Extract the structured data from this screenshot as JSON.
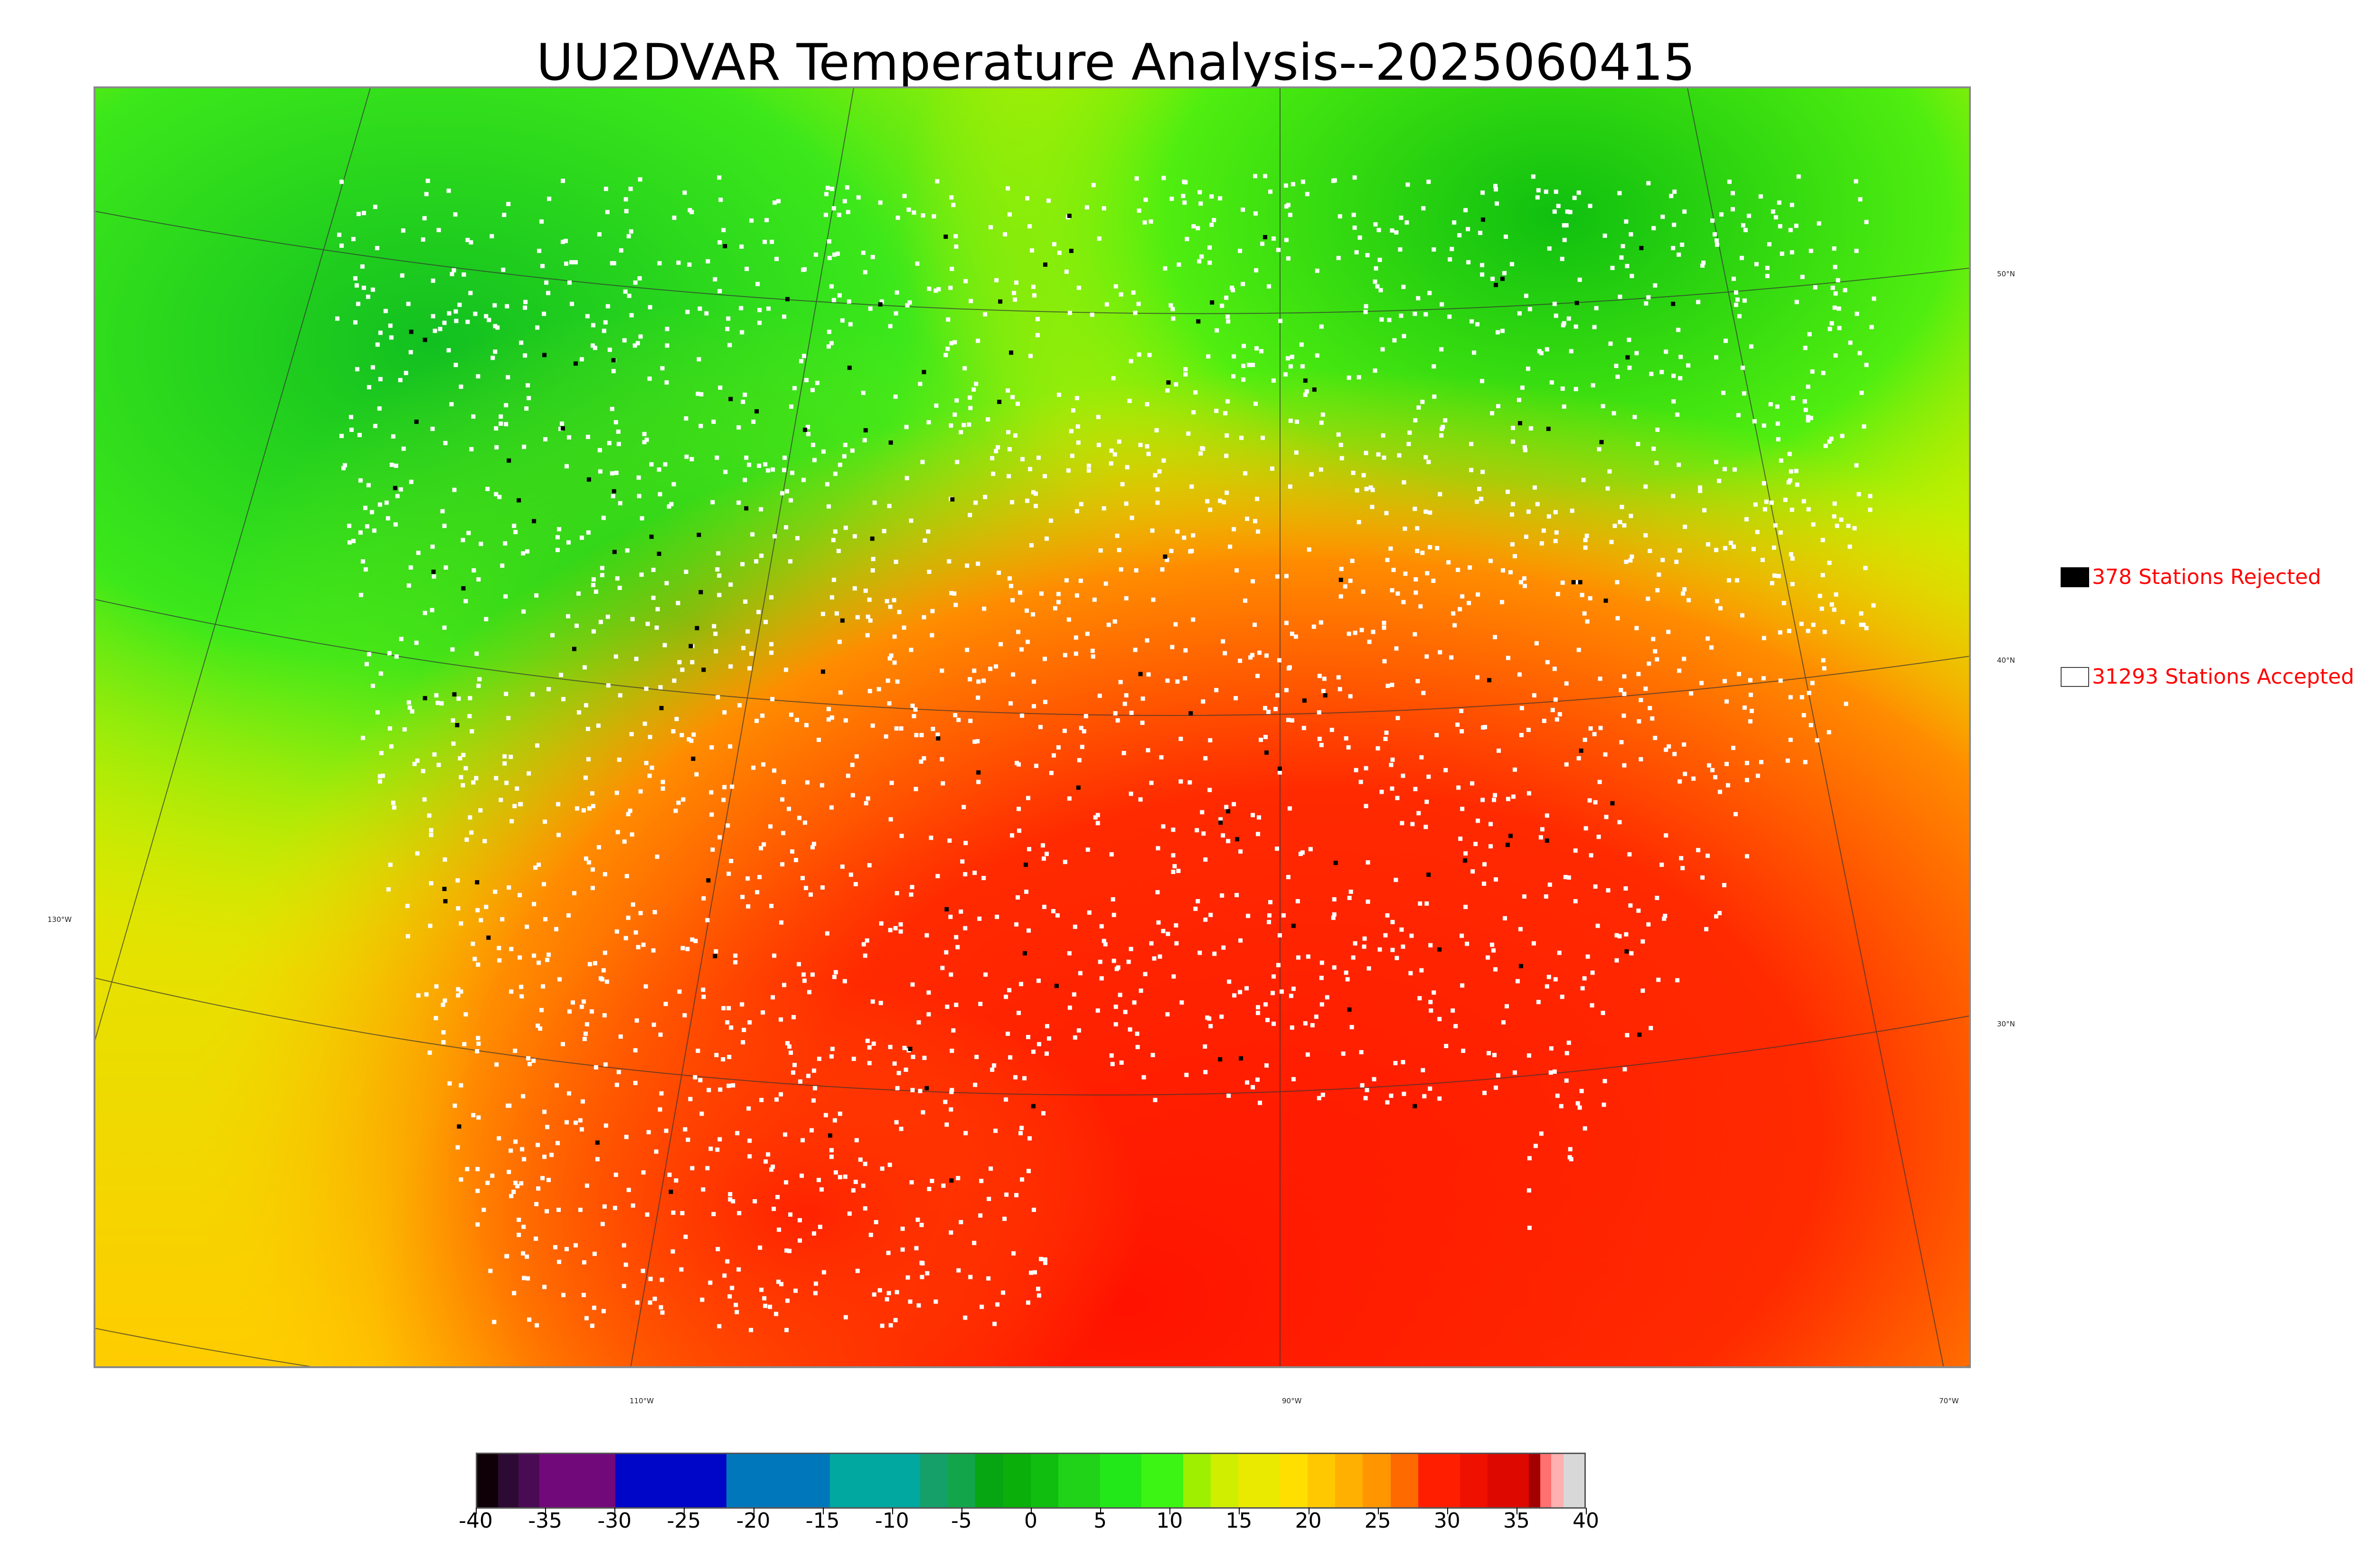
{
  "title": "UU2DVAR Temperature Analysis--2025060415",
  "map": {
    "latitude_labels": [
      "50°N",
      "40°N",
      "30°N"
    ],
    "longitude_labels": [
      "130°W",
      "110°W",
      "90°W",
      "70°W"
    ],
    "temperature_field": "temperature",
    "rejected_station_color": "#000000",
    "accepted_station_color": "#ffffff"
  },
  "legend": {
    "rejected": {
      "count": 378,
      "text": "378 Stations Rejected",
      "color": "#000000"
    },
    "accepted": {
      "count": 31293,
      "text": "31293 Stations Accepted",
      "color": "#ffffff"
    }
  },
  "colorbar": {
    "min": -40,
    "max": 40,
    "tick_labels": [
      "-40",
      "-35",
      "-30",
      "-25",
      "-20",
      "-15",
      "-10",
      "-5",
      "0",
      "5",
      "10",
      "15",
      "20",
      "25",
      "30",
      "35",
      "40"
    ],
    "colors": [
      {
        "from": -40,
        "to": -38.5,
        "color": "#0f0008"
      },
      {
        "from": -38.5,
        "to": -37,
        "color": "#2d0a33"
      },
      {
        "from": -37,
        "to": -35.5,
        "color": "#4a0b55"
      },
      {
        "from": -35.5,
        "to": -30,
        "color": "#72097a"
      },
      {
        "from": -30,
        "to": -22,
        "color": "#0006c8"
      },
      {
        "from": -22,
        "to": -14.5,
        "color": "#0077bb"
      },
      {
        "from": -14.5,
        "to": -8,
        "color": "#00a8a0"
      },
      {
        "from": -8,
        "to": -6,
        "color": "#15a06a"
      },
      {
        "from": -6,
        "to": -4,
        "color": "#13a54a"
      },
      {
        "from": -4,
        "to": -2,
        "color": "#05a612"
      },
      {
        "from": -2,
        "to": 0,
        "color": "#0aaf0a"
      },
      {
        "from": 0,
        "to": 2,
        "color": "#10be10"
      },
      {
        "from": 2,
        "to": 5,
        "color": "#20d218"
      },
      {
        "from": 5,
        "to": 8,
        "color": "#22e81a"
      },
      {
        "from": 8,
        "to": 11,
        "color": "#3cf514"
      },
      {
        "from": 11,
        "to": 13,
        "color": "#9ff000"
      },
      {
        "from": 13,
        "to": 15,
        "color": "#d0ee00"
      },
      {
        "from": 15,
        "to": 18,
        "color": "#eaea00"
      },
      {
        "from": 18,
        "to": 20,
        "color": "#ffdf00"
      },
      {
        "from": 20,
        "to": 22,
        "color": "#ffc800"
      },
      {
        "from": 22,
        "to": 24,
        "color": "#ffb000"
      },
      {
        "from": 24,
        "to": 26,
        "color": "#ff9600"
      },
      {
        "from": 26,
        "to": 28,
        "color": "#ff6a00"
      },
      {
        "from": 28,
        "to": 31,
        "color": "#ff1f00"
      },
      {
        "from": 31,
        "to": 33,
        "color": "#f01000"
      },
      {
        "from": 33,
        "to": 36,
        "color": "#dd0800"
      },
      {
        "from": 36,
        "to": 36.8,
        "color": "#a30000"
      },
      {
        "from": 36.8,
        "to": 37.6,
        "color": "#ff7070"
      },
      {
        "from": 37.6,
        "to": 38.5,
        "color": "#ffb0b0"
      },
      {
        "from": 38.5,
        "to": 40,
        "color": "#d8d8d8"
      }
    ]
  }
}
